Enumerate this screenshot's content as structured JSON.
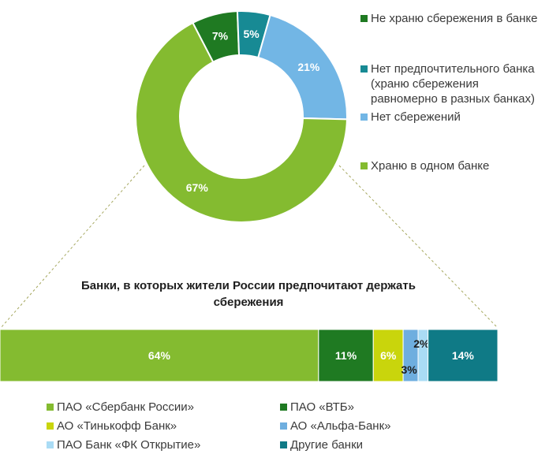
{
  "colors": {
    "green_light": "#84bb30",
    "green_dark": "#1f7a22",
    "teal": "#178a94",
    "blue_light": "#72b6e5",
    "yellow_green": "#c9d50c",
    "sky_blue": "#6eaedf",
    "pale_blue": "#aadcf5",
    "dark_teal": "#0f7a86",
    "connector": "#a6a860"
  },
  "chart_data": [
    {
      "type": "pie",
      "variant": "donut",
      "series": [
        {
          "name": "Не храню сбережения в банке",
          "value": 7,
          "label": "7%",
          "color": "#1f7a22"
        },
        {
          "name": "Нет предпочтительного банка\n(храню сбережения\nравномерно в разных банках)",
          "value": 5,
          "label": "5%",
          "color": "#178a94"
        },
        {
          "name": "Нет сбережений",
          "value": 21,
          "label": "21%",
          "color": "#72b6e5"
        },
        {
          "name": "Храню в одном банке",
          "value": 67,
          "label": "67%",
          "color": "#84bb30"
        }
      ],
      "legend_placement": "right"
    },
    {
      "type": "bar",
      "variant": "100% stacked horizontal",
      "title": "Банки, в которых жители России предпочитают держать сбережения",
      "series": [
        {
          "name": "ПАО «Сбербанк России»",
          "value": 64,
          "label": "64%",
          "color": "#84bb30"
        },
        {
          "name": "ПАО «ВТБ»",
          "value": 11,
          "label": "11%",
          "color": "#1f7a22"
        },
        {
          "name": "АО «Тинькофф Банк»",
          "value": 6,
          "label": "6%",
          "color": "#c9d50c"
        },
        {
          "name": "АО «Альфа-Банк»",
          "value": 3,
          "label": "3%",
          "color": "#6eaedf"
        },
        {
          "name": "ПАО Банк «ФК Открытие»",
          "value": 2,
          "label": "2%",
          "color": "#aadcf5"
        },
        {
          "name": "Другие банки",
          "value": 14,
          "label": "14%",
          "color": "#0f7a86"
        }
      ],
      "legend_placement": "bottom"
    }
  ]
}
